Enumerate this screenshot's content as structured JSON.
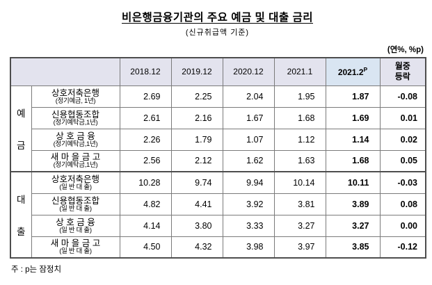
{
  "title": "비은행금융기관의 주요 예금 및 대출 금리",
  "subtitle": "(신규취급액 기준)",
  "unit_note": "(연%, %p)",
  "footnote": "주 : p는 잠정치",
  "table": {
    "col_headers": [
      "2018.12",
      "2019.12",
      "2020.12",
      "2021.1"
    ],
    "highlight_header": {
      "text": "2021.2",
      "sup": "P"
    },
    "change_header": {
      "line1": "월중",
      "line2": "등락"
    },
    "groups": [
      {
        "label": "예금",
        "label_chars": [
          "예",
          "금"
        ],
        "rows": [
          {
            "name": "상호저축은행",
            "sub": "(정기예금, 1년)",
            "values": [
              "2.69",
              "2.25",
              "2.04",
              "1.95",
              "1.87",
              "-0.08"
            ]
          },
          {
            "name": "신용협동조합",
            "sub": "(정기예탁금,1년)",
            "values": [
              "2.61",
              "2.16",
              "1.67",
              "1.68",
              "1.69",
              "0.01"
            ]
          },
          {
            "name": "상 호 금 융",
            "sub": "(정기예탁금,1년)",
            "values": [
              "2.26",
              "1.79",
              "1.07",
              "1.12",
              "1.14",
              "0.02"
            ]
          },
          {
            "name": "새 마 을 금 고",
            "sub": "(정기예탁금,1년)",
            "values": [
              "2.56",
              "2.12",
              "1.62",
              "1.63",
              "1.68",
              "0.05"
            ]
          }
        ]
      },
      {
        "label": "대출",
        "label_chars": [
          "대",
          "출"
        ],
        "rows": [
          {
            "name": "상호저축은행",
            "sub": "(일 반 대 출)",
            "values": [
              "10.28",
              "9.74",
              "9.94",
              "10.14",
              "10.11",
              "-0.03"
            ]
          },
          {
            "name": "신용협동조합",
            "sub": "(일 반 대 출)",
            "values": [
              "4.82",
              "4.41",
              "3.92",
              "3.81",
              "3.89",
              "0.08"
            ]
          },
          {
            "name": "상 호 금 융",
            "sub": "(일 반 대 출)",
            "values": [
              "4.14",
              "3.80",
              "3.33",
              "3.27",
              "3.27",
              "0.00"
            ]
          },
          {
            "name": "새 마 을 금 고",
            "sub": "(일 반 대 출)",
            "values": [
              "4.50",
              "4.32",
              "3.98",
              "3.97",
              "3.85",
              "-0.12"
            ]
          }
        ]
      }
    ]
  }
}
